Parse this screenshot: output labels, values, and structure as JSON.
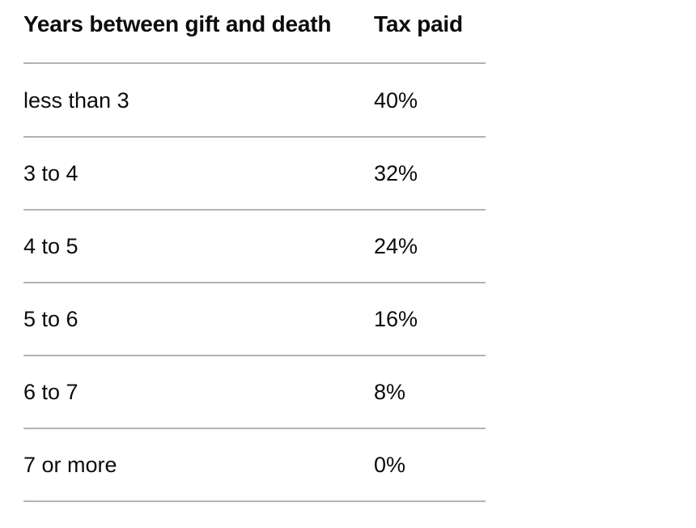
{
  "table": {
    "headers": {
      "years": "Years between gift and death",
      "tax": "Tax paid"
    },
    "rows": [
      {
        "years": "less than 3",
        "tax": "40%"
      },
      {
        "years": "3 to 4",
        "tax": "32%"
      },
      {
        "years": "4 to 5",
        "tax": "24%"
      },
      {
        "years": "5 to 6",
        "tax": "16%"
      },
      {
        "years": "6 to 7",
        "tax": "8%"
      },
      {
        "years": "7 or more",
        "tax": "0%"
      }
    ]
  }
}
